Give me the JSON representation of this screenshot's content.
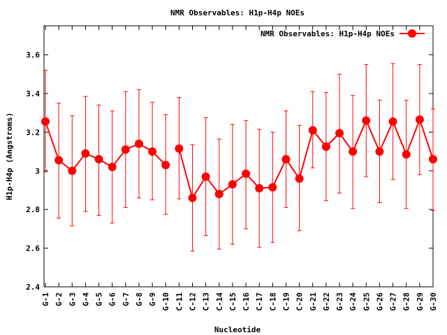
{
  "chart_data": {
    "type": "line",
    "title": "NMR Observables: H1p-H4p NOEs",
    "xlabel": "Nucleotide",
    "ylabel": "H1p-H4p (Angstroms)",
    "ylim": [
      2.4,
      3.75
    ],
    "yticks": [
      "2.4",
      "2.6",
      "2.8",
      "3",
      "3.2",
      "3.4",
      "3.6"
    ],
    "grid": false,
    "legend": "top-right",
    "categories": [
      "G-1",
      "G-2",
      "G-3",
      "G-4",
      "G-5",
      "G-6",
      "G-7",
      "G-8",
      "G-9",
      "G-10",
      "C-11",
      "C-12",
      "C-13",
      "C-14",
      "C-15",
      "C-16",
      "C-17",
      "C-18",
      "C-19",
      "C-20",
      "G-21",
      "G-22",
      "G-23",
      "G-24",
      "G-25",
      "G-26",
      "G-27",
      "G-28",
      "G-29",
      "G-30"
    ],
    "series": [
      {
        "name": "NMR Observables: H1p-H4p NOEs",
        "color": "#ff0000",
        "values": [
          3.255,
          3.055,
          3.0,
          3.09,
          3.06,
          3.02,
          3.11,
          3.14,
          3.1,
          3.03,
          3.115,
          2.86,
          2.97,
          2.88,
          2.93,
          2.985,
          2.91,
          2.915,
          3.06,
          2.96,
          3.21,
          3.125,
          3.195,
          3.1,
          3.26,
          3.1,
          3.255,
          3.085,
          3.265,
          3.06
        ],
        "error_low": [
          2.995,
          2.755,
          2.715,
          2.79,
          2.77,
          2.73,
          2.81,
          2.86,
          2.85,
          2.775,
          2.855,
          2.585,
          2.665,
          2.595,
          2.62,
          2.7,
          2.605,
          2.63,
          2.81,
          2.69,
          3.015,
          2.845,
          2.885,
          2.805,
          2.97,
          2.835,
          2.955,
          2.805,
          2.98,
          2.795
        ],
        "error_high": [
          3.52,
          3.35,
          3.285,
          3.385,
          3.34,
          3.31,
          3.41,
          3.42,
          3.355,
          3.29,
          3.38,
          3.135,
          3.275,
          3.165,
          3.24,
          3.26,
          3.215,
          3.2,
          3.31,
          3.235,
          3.41,
          3.405,
          3.5,
          3.39,
          3.55,
          3.365,
          3.555,
          3.365,
          3.55,
          3.32
        ],
        "break_after": "G-10"
      }
    ]
  }
}
